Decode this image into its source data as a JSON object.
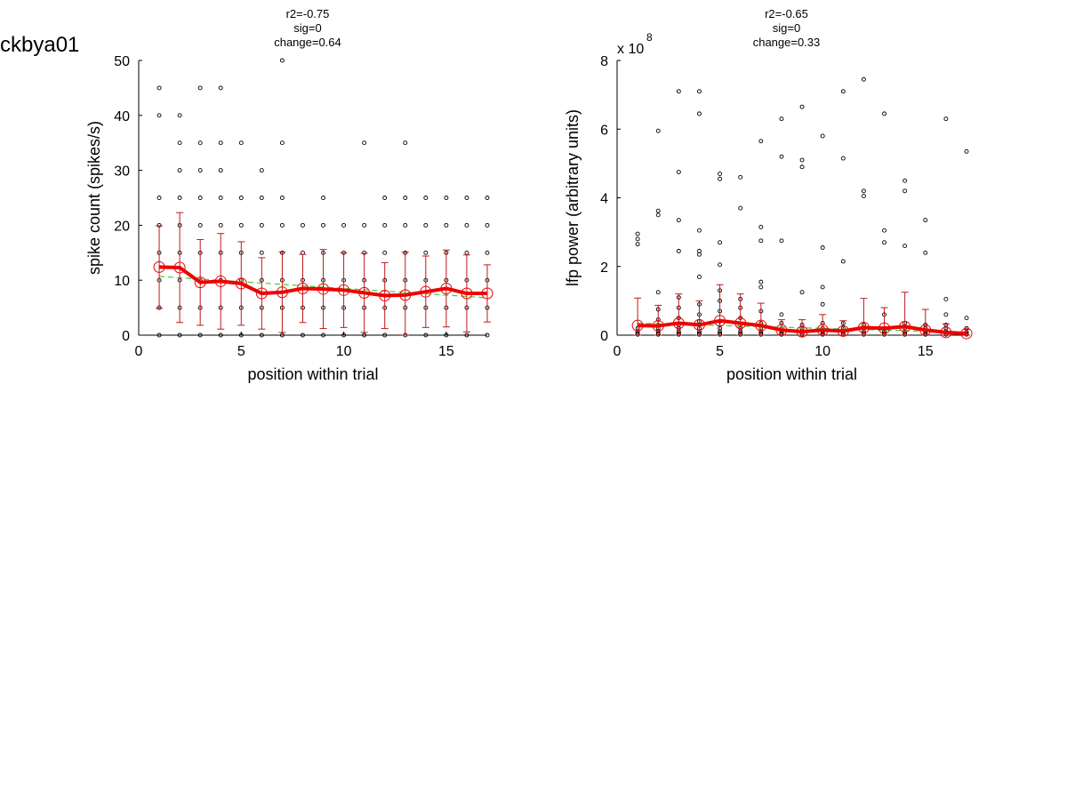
{
  "figure": {
    "id_label": "ckbya01"
  },
  "chart_data": [
    {
      "type": "scatter",
      "title_lines": [
        "r2=-0.75",
        "sig=0",
        "change=0.64"
      ],
      "xlabel": "position within trial",
      "ylabel": "spike count (spikes/s)",
      "xlim": [
        0,
        17
      ],
      "ylim": [
        0,
        50
      ],
      "xticks": [
        0,
        5,
        10,
        15
      ],
      "yticks": [
        0,
        10,
        20,
        30,
        40,
        50
      ],
      "exponent_label": "",
      "grid": false,
      "raw_points": [
        {
          "x": 1,
          "ys": [
            0,
            5,
            10,
            15,
            20,
            25,
            40,
            45
          ]
        },
        {
          "x": 2,
          "ys": [
            0,
            5,
            10,
            15,
            20,
            25,
            30,
            35,
            40
          ]
        },
        {
          "x": 3,
          "ys": [
            0,
            5,
            10,
            15,
            20,
            25,
            30,
            35,
            45
          ]
        },
        {
          "x": 4,
          "ys": [
            0,
            5,
            10,
            15,
            20,
            25,
            30,
            35,
            45
          ]
        },
        {
          "x": 5,
          "ys": [
            0,
            5,
            10,
            15,
            20,
            25,
            35
          ]
        },
        {
          "x": 6,
          "ys": [
            0,
            5,
            10,
            15,
            20,
            25,
            30
          ]
        },
        {
          "x": 7,
          "ys": [
            0,
            5,
            10,
            15,
            20,
            25,
            35,
            50
          ]
        },
        {
          "x": 8,
          "ys": [
            0,
            5,
            10,
            15,
            20
          ]
        },
        {
          "x": 9,
          "ys": [
            0,
            5,
            10,
            15,
            20,
            25
          ]
        },
        {
          "x": 10,
          "ys": [
            0,
            5,
            10,
            15,
            20
          ]
        },
        {
          "x": 11,
          "ys": [
            0,
            5,
            10,
            15,
            20,
            35
          ]
        },
        {
          "x": 12,
          "ys": [
            0,
            5,
            10,
            15,
            20,
            25
          ]
        },
        {
          "x": 13,
          "ys": [
            0,
            5,
            10,
            15,
            20,
            25,
            35
          ]
        },
        {
          "x": 14,
          "ys": [
            0,
            5,
            10,
            15,
            20,
            25
          ]
        },
        {
          "x": 15,
          "ys": [
            0,
            5,
            10,
            15,
            20,
            25
          ]
        },
        {
          "x": 16,
          "ys": [
            0,
            5,
            10,
            15,
            20,
            25
          ]
        },
        {
          "x": 17,
          "ys": [
            0,
            5,
            10,
            15,
            20,
            25
          ]
        }
      ],
      "mean_series": {
        "x": [
          1,
          2,
          3,
          4,
          5,
          6,
          7,
          8,
          9,
          10,
          11,
          12,
          13,
          14,
          15,
          16,
          17
        ],
        "y": [
          12.4,
          12.3,
          9.6,
          9.8,
          9.4,
          7.6,
          7.8,
          8.5,
          8.4,
          8.2,
          7.7,
          7.2,
          7.3,
          7.9,
          8.5,
          7.6,
          7.6
        ],
        "err": [
          7.5,
          10.0,
          7.8,
          8.7,
          7.6,
          6.5,
          7.3,
          6.2,
          7.2,
          6.8,
          7.2,
          6.0,
          7.8,
          6.5,
          7.0,
          7.0,
          5.2
        ]
      },
      "fit_line": {
        "x": [
          1,
          17
        ],
        "y": [
          10.7,
          6.8
        ]
      },
      "colors": {
        "mean": "#ee0000",
        "err": "#c01818",
        "fit": "#44cc44",
        "points": "#000000"
      }
    },
    {
      "type": "scatter",
      "title_lines": [
        "r2=-0.65",
        "sig=0",
        "change=0.33"
      ],
      "xlabel": "position within trial",
      "ylabel": "lfp power (arbitrary units)",
      "xlim": [
        0,
        17
      ],
      "ylim": [
        0,
        8
      ],
      "xticks": [
        0,
        5,
        10,
        15
      ],
      "yticks": [
        0,
        2,
        4,
        6,
        8
      ],
      "exponent_label": "x 10",
      "exponent_power": "8",
      "grid": false,
      "raw_points": [
        {
          "x": 1,
          "ys": [
            0.02,
            0.05,
            0.1,
            0.2,
            2.65,
            2.8,
            2.95
          ]
        },
        {
          "x": 2,
          "ys": [
            0.02,
            0.06,
            0.12,
            0.2,
            0.3,
            0.45,
            0.75,
            1.25,
            3.5,
            3.62,
            5.95
          ]
        },
        {
          "x": 3,
          "ys": [
            0.02,
            0.05,
            0.1,
            0.2,
            0.3,
            0.5,
            0.8,
            1.1,
            2.45,
            3.35,
            4.75,
            7.1
          ]
        },
        {
          "x": 4,
          "ys": [
            0.02,
            0.05,
            0.1,
            0.2,
            0.4,
            0.6,
            0.9,
            1.7,
            2.35,
            2.45,
            3.05,
            6.45,
            7.1
          ]
        },
        {
          "x": 5,
          "ys": [
            0.02,
            0.05,
            0.1,
            0.2,
            0.4,
            0.7,
            1.0,
            1.3,
            2.05,
            2.7,
            4.55,
            4.7
          ]
        },
        {
          "x": 6,
          "ys": [
            0.02,
            0.05,
            0.1,
            0.2,
            0.3,
            0.5,
            0.8,
            1.05,
            3.7,
            4.6
          ]
        },
        {
          "x": 7,
          "ys": [
            0.02,
            0.05,
            0.1,
            0.2,
            0.35,
            0.7,
            1.4,
            1.55,
            2.75,
            3.15,
            5.65
          ]
        },
        {
          "x": 8,
          "ys": [
            0.02,
            0.05,
            0.1,
            0.2,
            0.35,
            0.6,
            2.75,
            5.2,
            6.3
          ]
        },
        {
          "x": 9,
          "ys": [
            0.02,
            0.05,
            0.1,
            0.2,
            0.3,
            1.25,
            4.9,
            5.1,
            6.65
          ]
        },
        {
          "x": 10,
          "ys": [
            0.02,
            0.05,
            0.1,
            0.2,
            0.35,
            0.9,
            1.4,
            2.55,
            5.8
          ]
        },
        {
          "x": 11,
          "ys": [
            0.02,
            0.05,
            0.1,
            0.2,
            0.35,
            2.15,
            5.15,
            7.1
          ]
        },
        {
          "x": 12,
          "ys": [
            0.02,
            0.05,
            0.1,
            0.2,
            0.3,
            4.05,
            4.2,
            7.45
          ]
        },
        {
          "x": 13,
          "ys": [
            0.02,
            0.05,
            0.1,
            0.2,
            0.6,
            2.7,
            3.05,
            6.45
          ]
        },
        {
          "x": 14,
          "ys": [
            0.02,
            0.05,
            0.1,
            0.2,
            0.35,
            2.6,
            4.2,
            4.5
          ]
        },
        {
          "x": 15,
          "ys": [
            0.02,
            0.05,
            0.1,
            0.2,
            0.3,
            2.4,
            3.35
          ]
        },
        {
          "x": 16,
          "ys": [
            0.02,
            0.05,
            0.1,
            0.2,
            0.3,
            0.6,
            1.05,
            6.3
          ]
        },
        {
          "x": 17,
          "ys": [
            0.02,
            0.05,
            0.1,
            0.2,
            0.5,
            5.35
          ]
        }
      ],
      "mean_series": {
        "x": [
          1,
          2,
          3,
          4,
          5,
          6,
          7,
          8,
          9,
          10,
          11,
          12,
          13,
          14,
          15,
          16,
          17
        ],
        "y": [
          0.28,
          0.27,
          0.35,
          0.3,
          0.42,
          0.35,
          0.28,
          0.15,
          0.1,
          0.15,
          0.12,
          0.22,
          0.2,
          0.25,
          0.15,
          0.08,
          0.05
        ],
        "err": [
          0.8,
          0.6,
          0.85,
          0.7,
          1.05,
          0.85,
          0.65,
          0.3,
          0.35,
          0.45,
          0.3,
          0.85,
          0.6,
          1.0,
          0.6,
          0.25,
          0.12
        ]
      },
      "fit_line": {
        "x": [
          1,
          17
        ],
        "y": [
          0.35,
          0.08
        ]
      },
      "colors": {
        "mean": "#ee0000",
        "err": "#c01818",
        "fit": "#44cc44",
        "points": "#000000"
      }
    }
  ]
}
